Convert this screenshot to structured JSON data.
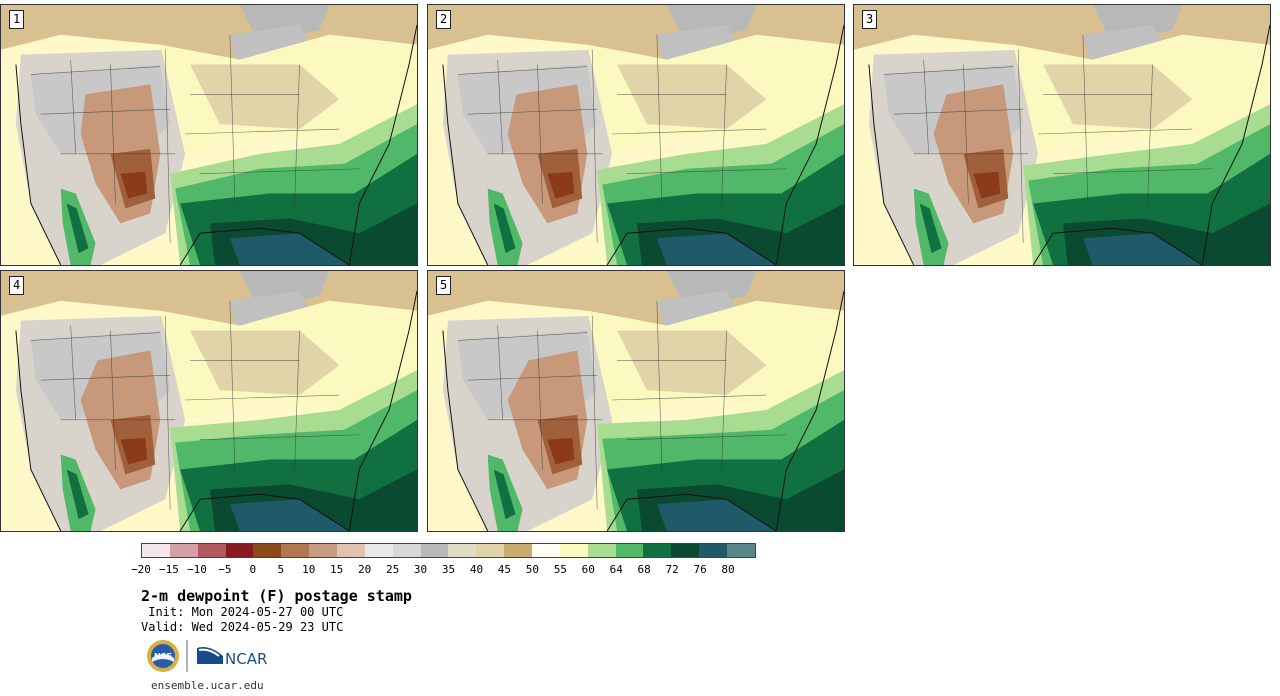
{
  "panels": [
    {
      "label": "1"
    },
    {
      "label": "2"
    },
    {
      "label": "3"
    },
    {
      "label": "4"
    },
    {
      "label": "5"
    }
  ],
  "colorbar": {
    "colors": [
      "#f5e6e8",
      "#d4a0a4",
      "#b05a60",
      "#8b1a20",
      "#8b4a1a",
      "#b07850",
      "#c89c80",
      "#e0c4b0",
      "#e8e8e8",
      "#d8d8d8",
      "#b8b8b8",
      "#e0dcc8",
      "#e0d4a8",
      "#c8ac70",
      "#fffef0",
      "#fbf8c0",
      "#a8dc90",
      "#50b868",
      "#107040",
      "#0a4a30",
      "#1e5a68",
      "#5a8888"
    ],
    "ticks": [
      "−20",
      "−15",
      "−10",
      "−5",
      "0",
      "5",
      "10",
      "15",
      "20",
      "25",
      "30",
      "35",
      "40",
      "45",
      "50",
      "55",
      "60",
      "64",
      "68",
      "72",
      "76",
      "80"
    ]
  },
  "title": "2-m dewpoint (F) postage stamp",
  "init_text": " Init: Mon 2024-05-27 00 UTC",
  "valid_text": "Valid: Wed 2024-05-29 23 UTC",
  "logos": {
    "left_icon": "nsf-logo-icon",
    "right_icon": "ncar-logo-icon",
    "right_text": "NCAR",
    "left_text": "NSF"
  },
  "url": "ensemble.ucar.edu"
}
